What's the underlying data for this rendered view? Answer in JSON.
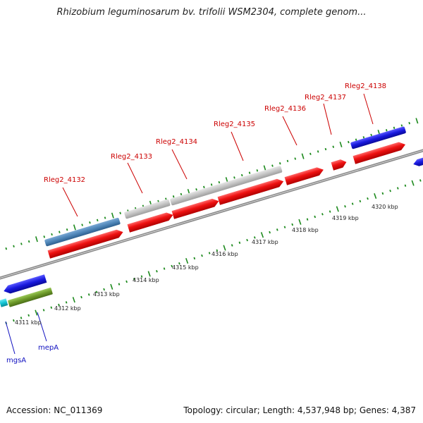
{
  "title": "Rhizobium leguminosarum bv. trifolii WSM2304, complete genom...",
  "footer": {
    "accession": "Accession: NC_011369",
    "topology": "Topology: circular; Length: 4,537,948 bp; Genes: 4,387"
  },
  "colors": {
    "red_gene": "#ee1111",
    "gray_gene": "#c8c8c8",
    "steel_gene": "#4f86b8",
    "blue_gene": "#1818dd",
    "olive_gene": "#6d9a2a",
    "cyan_gene": "#12c4d4",
    "label_red": "#cc0000",
    "label_blue": "#1010c0",
    "tick_green": "#1d8a1d",
    "backbone": "#8a8a8a"
  },
  "gene_labels": [
    {
      "name": "Rleg2_4132"
    },
    {
      "name": "Rleg2_4133"
    },
    {
      "name": "Rleg2_4134"
    },
    {
      "name": "Rleg2_4135"
    },
    {
      "name": "Rleg2_4136"
    },
    {
      "name": "Rleg2_4137"
    },
    {
      "name": "Rleg2_4138"
    },
    {
      "name": "mepA"
    },
    {
      "name": "mgsA"
    }
  ],
  "scale_ticks": [
    "4311 kbp",
    "4312 kbp",
    "4313 kbp",
    "4314 kbp",
    "4315 kbp",
    "4316 kbp",
    "4317 kbp",
    "4318 kbp",
    "4319 kbp",
    "4320 kbp"
  ]
}
